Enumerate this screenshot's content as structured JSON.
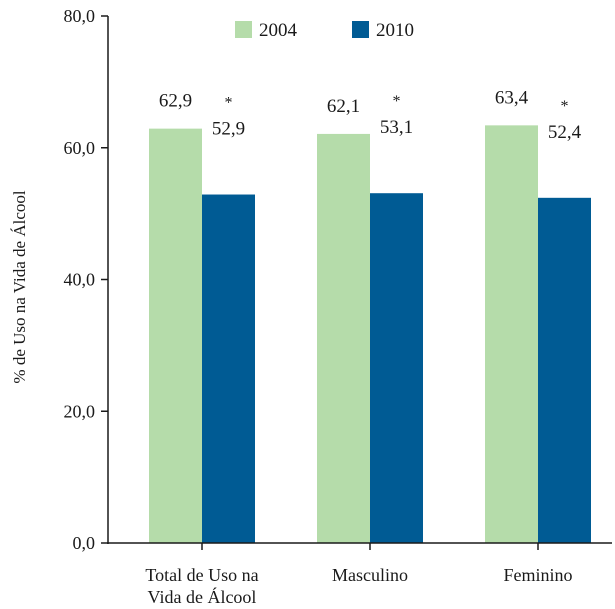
{
  "chart_data": {
    "type": "bar",
    "categories": [
      [
        "Total de Uso na",
        "Vida de Álcool"
      ],
      [
        "Masculino"
      ],
      [
        "Feminino"
      ]
    ],
    "series": [
      {
        "name": "2004",
        "color": "#b5dcaa",
        "values": [
          62.9,
          62.1,
          63.4
        ],
        "labels": [
          "62,9",
          "62,1",
          "63,4"
        ],
        "marker": [
          "",
          "",
          ""
        ]
      },
      {
        "name": "2010",
        "color": "#005b94",
        "values": [
          52.9,
          53.1,
          52.4
        ],
        "labels": [
          "52,9",
          "53,1",
          "52,4"
        ],
        "marker": [
          "*",
          "*",
          "*"
        ]
      }
    ],
    "ylabel": "% de Uso na Vida de Álcool",
    "xlabel": "",
    "title": "",
    "ylim": [
      0,
      80
    ],
    "yticks": [
      0,
      20,
      40,
      60,
      80
    ],
    "ytick_labels": [
      "0,0",
      "20,0",
      "40,0",
      "60,0",
      "80,0"
    ],
    "legend_position": "top-center",
    "grid": false
  }
}
